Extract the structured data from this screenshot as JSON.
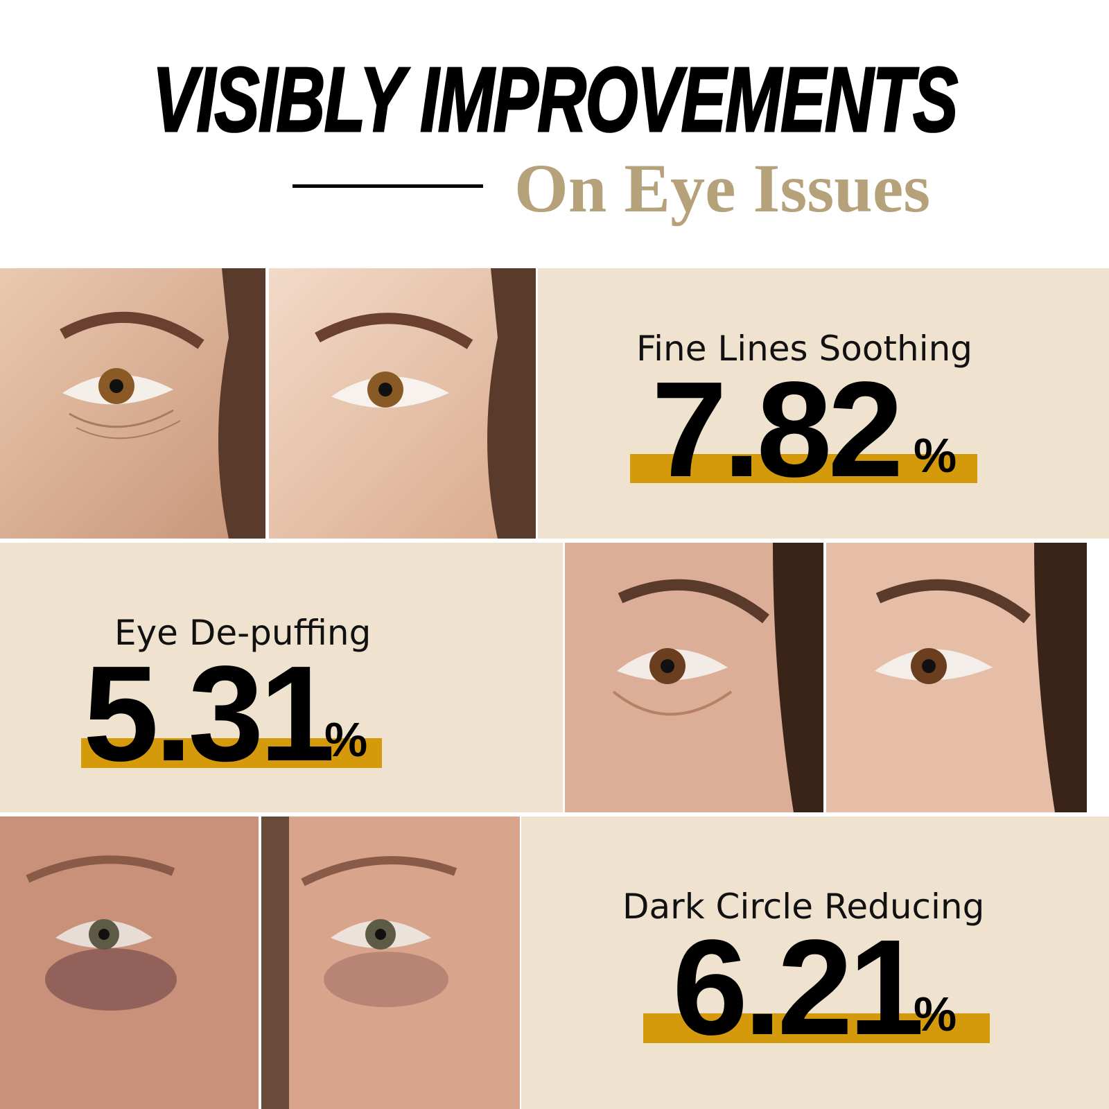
{
  "header": {
    "title": "VISIBLY IMPROVEMENTS",
    "subtitle": "On Eye Issues"
  },
  "colors": {
    "panel_background": "#efe3cf",
    "highlight_bar": "#d49a0c",
    "subtitle": "#b5a27a"
  },
  "stats": [
    {
      "label": "Fine Lines Soothing",
      "value": "7.82",
      "unit": "%"
    },
    {
      "label": "Eye De-puffing",
      "value": "5.31",
      "unit": "%"
    },
    {
      "label": "Dark Circle Reducing",
      "value": "6.21",
      "unit": "%"
    }
  ]
}
